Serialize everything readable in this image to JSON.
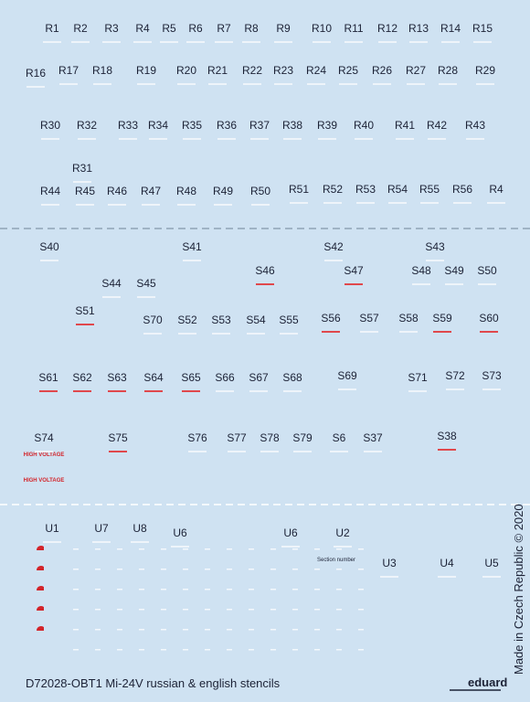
{
  "r_labels": [
    "R1",
    "R2",
    "R3",
    "R4",
    "R5",
    "R6",
    "R7",
    "R8",
    "R9",
    "R10",
    "R11",
    "R12",
    "R13",
    "R14",
    "R15",
    "R16",
    "R17",
    "R18",
    "R19",
    "R20",
    "R21",
    "R22",
    "R23",
    "R24",
    "R25",
    "R26",
    "R27",
    "R28",
    "R29",
    "R30",
    "R32",
    "R33",
    "R34",
    "R35",
    "R36",
    "R37",
    "R38",
    "R39",
    "R40",
    "R41",
    "R42",
    "R43",
    "R31",
    "R44",
    "R45",
    "R46",
    "R47",
    "R48",
    "R49",
    "R50",
    "R51",
    "R52",
    "R53",
    "R54",
    "R55",
    "R56",
    "R4"
  ],
  "s_labels": [
    "S40",
    "S41",
    "S42",
    "S43",
    "S44",
    "S45",
    "S46",
    "S47",
    "S48",
    "S49",
    "S50",
    "S51",
    "S70",
    "S52",
    "S53",
    "S54",
    "S55",
    "S56",
    "S57",
    "S58",
    "S59",
    "S60",
    "S61",
    "S62",
    "S63",
    "S64",
    "S65",
    "S66",
    "S67",
    "S68",
    "S69",
    "S71",
    "S72",
    "S73",
    "S74",
    "S75",
    "S76",
    "S77",
    "S78",
    "S79",
    "S6",
    "S37",
    "S38"
  ],
  "u_labels": [
    "U1",
    "U7",
    "U8",
    "U6",
    "U6",
    "U2",
    "U3",
    "U4",
    "U5"
  ],
  "stencil_texts": {
    "high_voltage": [
      "HIGH VOLTAGE",
      "HIGH VOLTAGE"
    ],
    "section_number": "Section number"
  },
  "footer": {
    "title": "D72028-OBT1 Mi-24V russian & english stencils",
    "brand": "eduard",
    "side_note": "Made in Czech Republic © 2020"
  }
}
